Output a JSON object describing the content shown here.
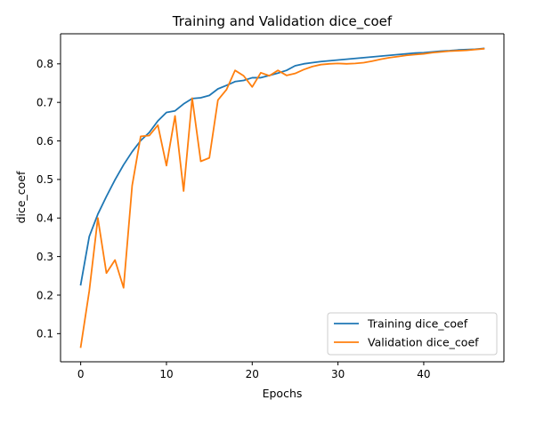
{
  "chart_data": {
    "type": "line",
    "title": "Training and Validation dice_coef",
    "xlabel": "Epochs",
    "ylabel": "dice_coef",
    "xlim": [
      -2.35,
      49.35
    ],
    "ylim": [
      0.027,
      0.878
    ],
    "xticks": [
      0,
      10,
      20,
      30,
      40
    ],
    "yticks": [
      0.1,
      0.2,
      0.3,
      0.4,
      0.5,
      0.6,
      0.7,
      0.8
    ],
    "ytick_labels": [
      "0.1",
      "0.2",
      "0.3",
      "0.4",
      "0.5",
      "0.6",
      "0.7",
      "0.8"
    ],
    "grid": false,
    "legend_position": "lower-right",
    "x": [
      0,
      1,
      2,
      3,
      4,
      5,
      6,
      7,
      8,
      9,
      10,
      11,
      12,
      13,
      14,
      15,
      16,
      17,
      18,
      19,
      20,
      21,
      22,
      23,
      24,
      25,
      26,
      27,
      28,
      29,
      30,
      31,
      32,
      33,
      34,
      35,
      36,
      37,
      38,
      39,
      40,
      41,
      42,
      43,
      44,
      45,
      46,
      47
    ],
    "series": [
      {
        "name": "Training dice_coef",
        "color": "#1f77b4",
        "values": [
          0.227,
          0.352,
          0.41,
          0.456,
          0.499,
          0.538,
          0.572,
          0.601,
          0.622,
          0.652,
          0.674,
          0.678,
          0.696,
          0.71,
          0.712,
          0.718,
          0.735,
          0.744,
          0.754,
          0.757,
          0.764,
          0.764,
          0.77,
          0.776,
          0.783,
          0.795,
          0.8,
          0.803,
          0.806,
          0.808,
          0.81,
          0.812,
          0.814,
          0.816,
          0.818,
          0.82,
          0.822,
          0.824,
          0.826,
          0.828,
          0.829,
          0.831,
          0.833,
          0.834,
          0.836,
          0.837,
          0.838,
          0.84
        ]
      },
      {
        "name": "Validation dice_coef",
        "color": "#ff7f0e",
        "values": [
          0.065,
          0.211,
          0.4,
          0.257,
          0.291,
          0.219,
          0.484,
          0.612,
          0.614,
          0.641,
          0.536,
          0.665,
          0.47,
          0.711,
          0.547,
          0.556,
          0.706,
          0.733,
          0.783,
          0.769,
          0.74,
          0.777,
          0.769,
          0.783,
          0.77,
          0.775,
          0.785,
          0.793,
          0.798,
          0.8,
          0.801,
          0.8,
          0.801,
          0.803,
          0.807,
          0.812,
          0.816,
          0.819,
          0.822,
          0.824,
          0.826,
          0.829,
          0.831,
          0.833,
          0.834,
          0.835,
          0.837,
          0.839
        ]
      }
    ]
  }
}
